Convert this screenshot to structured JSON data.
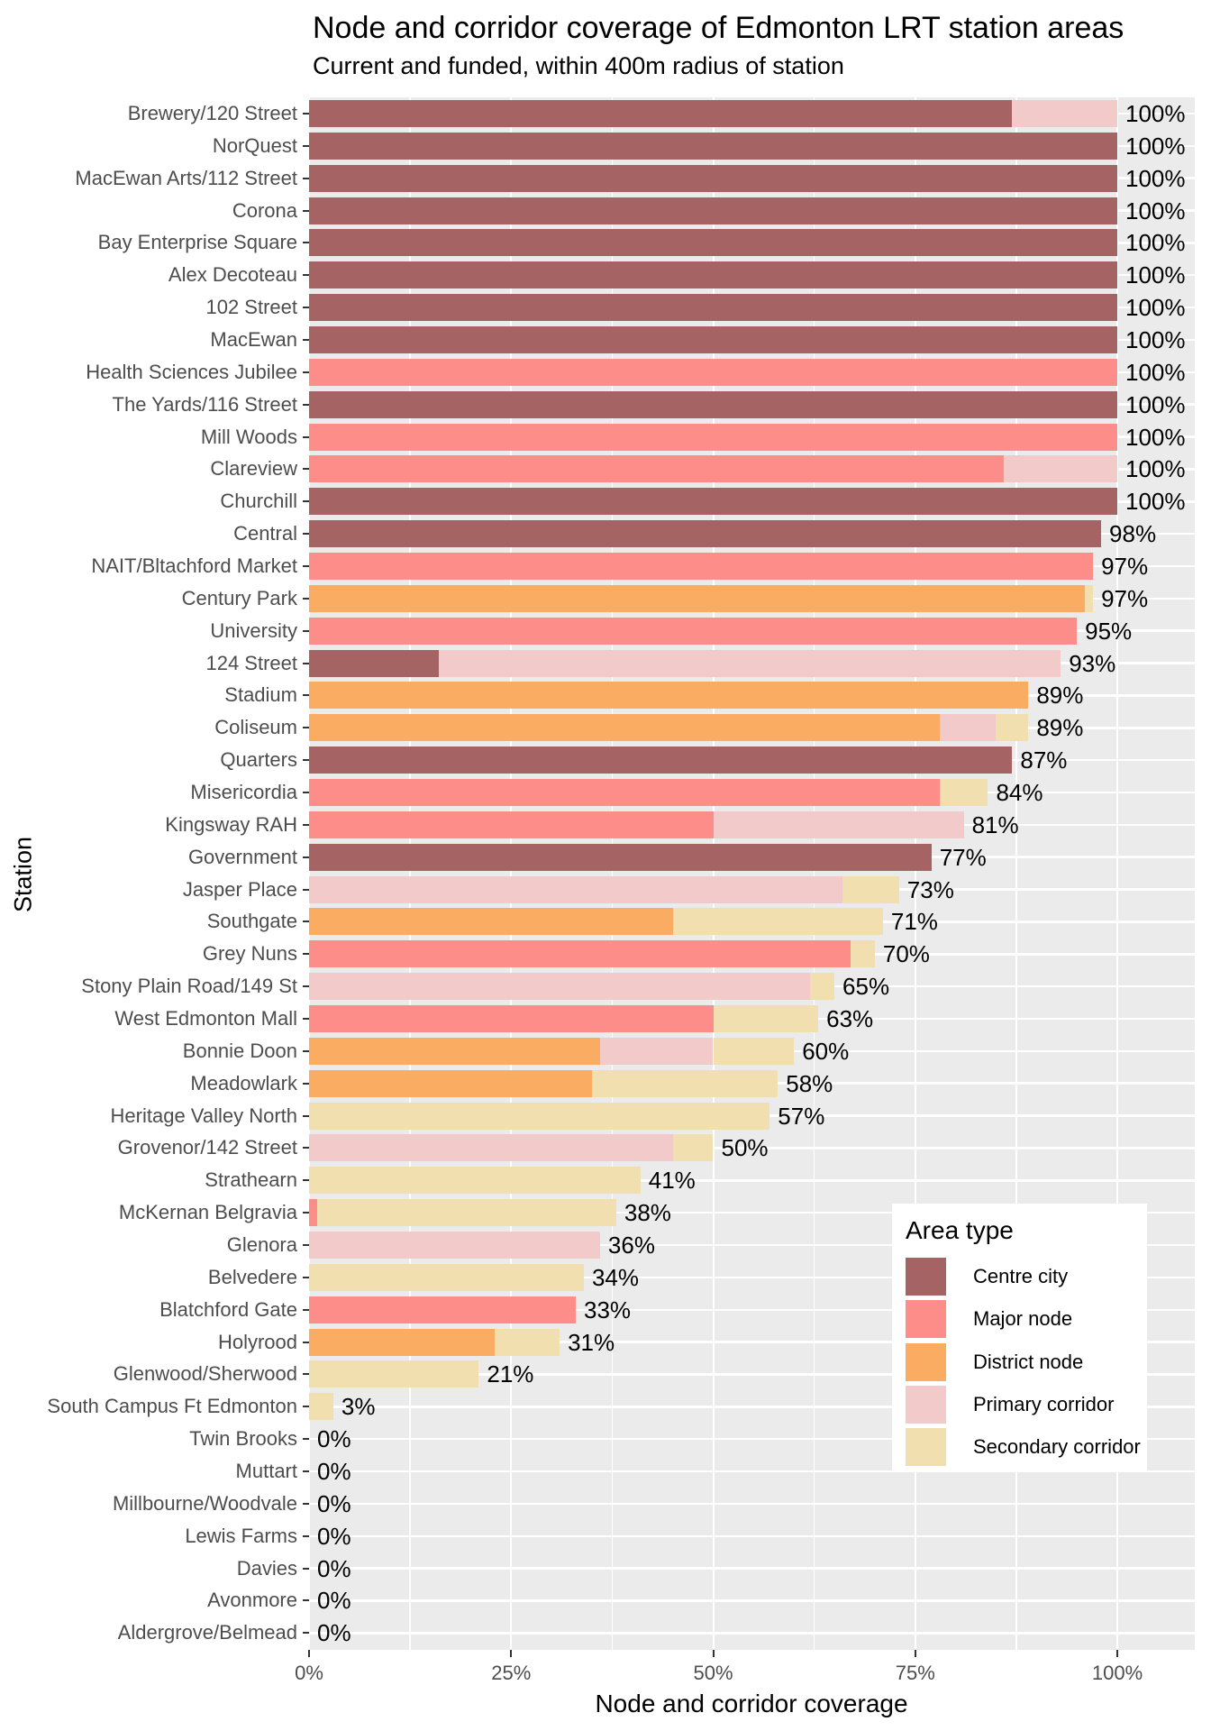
{
  "header": {
    "title": "Node and corridor coverage of Edmonton LRT station areas",
    "subtitle": "Current and funded, within 400m radius of station"
  },
  "axes": {
    "x_title": "Node and corridor coverage",
    "y_title": "Station",
    "x_ticks": [
      "0%",
      "25%",
      "50%",
      "75%",
      "100%"
    ]
  },
  "legend": {
    "title": "Area type",
    "entries": [
      {
        "label": "Centre city",
        "color": "#A66364"
      },
      {
        "label": "Major node",
        "color": "#FC8D88"
      },
      {
        "label": "District node",
        "color": "#FBAC63"
      },
      {
        "label": "Primary corridor",
        "color": "#F2CACA"
      },
      {
        "label": "Secondary corridor",
        "color": "#F1DFB0"
      }
    ]
  },
  "colors": {
    "panel_bg": "#EBEBEB",
    "grid": "#FFFFFF",
    "axis_text": "#4D4D4D",
    "tick": "#333333",
    "value_text": "#000000"
  },
  "chart_data": {
    "type": "bar",
    "orientation": "horizontal",
    "stacked": true,
    "xlabel": "Node and corridor coverage",
    "ylabel": "Station",
    "xlim": [
      0,
      100
    ],
    "x_major_ticks_pct": [
      0,
      25,
      50,
      75,
      100
    ],
    "x_minor_ticks_pct": [
      12.5,
      37.5,
      62.5,
      87.5
    ],
    "area_types": [
      "Centre city",
      "Major node",
      "District node",
      "Primary corridor",
      "Secondary corridor"
    ],
    "area_colors": {
      "Centre city": "#A66364",
      "Major node": "#FC8D88",
      "District node": "#FBAC63",
      "Primary corridor": "#F2CACA",
      "Secondary corridor": "#F1DFB0"
    },
    "stations": [
      {
        "name": "Brewery/120 Street",
        "label": "100%",
        "segments": [
          [
            "Centre city",
            87
          ],
          [
            "Primary corridor",
            13
          ]
        ]
      },
      {
        "name": "NorQuest",
        "label": "100%",
        "segments": [
          [
            "Centre city",
            100
          ]
        ]
      },
      {
        "name": "MacEwan Arts/112 Street",
        "label": "100%",
        "segments": [
          [
            "Centre city",
            100
          ]
        ]
      },
      {
        "name": "Corona",
        "label": "100%",
        "segments": [
          [
            "Centre city",
            100
          ]
        ]
      },
      {
        "name": "Bay Enterprise Square",
        "label": "100%",
        "segments": [
          [
            "Centre city",
            100
          ]
        ]
      },
      {
        "name": "Alex Decoteau",
        "label": "100%",
        "segments": [
          [
            "Centre city",
            100
          ]
        ]
      },
      {
        "name": "102 Street",
        "label": "100%",
        "segments": [
          [
            "Centre city",
            100
          ]
        ]
      },
      {
        "name": "MacEwan",
        "label": "100%",
        "segments": [
          [
            "Centre city",
            100
          ]
        ]
      },
      {
        "name": "Health Sciences Jubilee",
        "label": "100%",
        "segments": [
          [
            "Major node",
            100
          ]
        ]
      },
      {
        "name": "The Yards/116 Street",
        "label": "100%",
        "segments": [
          [
            "Centre city",
            100
          ]
        ]
      },
      {
        "name": "Mill Woods",
        "label": "100%",
        "segments": [
          [
            "Major node",
            100
          ]
        ]
      },
      {
        "name": "Clareview",
        "label": "100%",
        "segments": [
          [
            "Major node",
            86
          ],
          [
            "Primary corridor",
            14
          ]
        ]
      },
      {
        "name": "Churchill",
        "label": "100%",
        "segments": [
          [
            "Centre city",
            100
          ]
        ]
      },
      {
        "name": "Central",
        "label": "98%",
        "segments": [
          [
            "Centre city",
            98
          ]
        ]
      },
      {
        "name": "NAIT/Bltachford Market",
        "label": "97%",
        "segments": [
          [
            "Major node",
            97
          ]
        ]
      },
      {
        "name": "Century Park",
        "label": "97%",
        "segments": [
          [
            "District node",
            96
          ],
          [
            "Secondary corridor",
            1
          ]
        ]
      },
      {
        "name": "University",
        "label": "95%",
        "segments": [
          [
            "Major node",
            95
          ]
        ]
      },
      {
        "name": "124 Street",
        "label": "93%",
        "segments": [
          [
            "Centre city",
            16
          ],
          [
            "Primary corridor",
            77
          ]
        ]
      },
      {
        "name": "Stadium",
        "label": "89%",
        "segments": [
          [
            "District node",
            89
          ]
        ]
      },
      {
        "name": "Coliseum",
        "label": "89%",
        "segments": [
          [
            "District node",
            78
          ],
          [
            "Primary corridor",
            7
          ],
          [
            "Secondary corridor",
            4
          ]
        ]
      },
      {
        "name": "Quarters",
        "label": "87%",
        "segments": [
          [
            "Centre city",
            87
          ]
        ]
      },
      {
        "name": "Misericordia",
        "label": "84%",
        "segments": [
          [
            "Major node",
            78
          ],
          [
            "Secondary corridor",
            6
          ]
        ]
      },
      {
        "name": "Kingsway RAH",
        "label": "81%",
        "segments": [
          [
            "Major node",
            50
          ],
          [
            "Primary corridor",
            31
          ]
        ]
      },
      {
        "name": "Government",
        "label": "77%",
        "segments": [
          [
            "Centre city",
            77
          ]
        ]
      },
      {
        "name": "Jasper Place",
        "label": "73%",
        "segments": [
          [
            "Primary corridor",
            66
          ],
          [
            "Secondary corridor",
            7
          ]
        ]
      },
      {
        "name": "Southgate",
        "label": "71%",
        "segments": [
          [
            "District node",
            45
          ],
          [
            "Secondary corridor",
            26
          ]
        ]
      },
      {
        "name": "Grey Nuns",
        "label": "70%",
        "segments": [
          [
            "Major node",
            67
          ],
          [
            "Secondary corridor",
            3
          ]
        ]
      },
      {
        "name": "Stony Plain Road/149 St",
        "label": "65%",
        "segments": [
          [
            "Primary corridor",
            62
          ],
          [
            "Secondary corridor",
            3
          ]
        ]
      },
      {
        "name": "West Edmonton Mall",
        "label": "63%",
        "segments": [
          [
            "Major node",
            50
          ],
          [
            "Secondary corridor",
            13
          ]
        ]
      },
      {
        "name": "Bonnie Doon",
        "label": "60%",
        "segments": [
          [
            "District node",
            36
          ],
          [
            "Primary corridor",
            14
          ],
          [
            "Secondary corridor",
            10
          ]
        ]
      },
      {
        "name": "Meadowlark",
        "label": "58%",
        "segments": [
          [
            "District node",
            35
          ],
          [
            "Secondary corridor",
            23
          ]
        ]
      },
      {
        "name": "Heritage Valley North",
        "label": "57%",
        "segments": [
          [
            "Secondary corridor",
            57
          ]
        ]
      },
      {
        "name": "Grovenor/142 Street",
        "label": "50%",
        "segments": [
          [
            "Primary corridor",
            45
          ],
          [
            "Secondary corridor",
            5
          ]
        ]
      },
      {
        "name": "Strathearn",
        "label": "41%",
        "segments": [
          [
            "Secondary corridor",
            41
          ]
        ]
      },
      {
        "name": "McKernan Belgravia",
        "label": "38%",
        "segments": [
          [
            "Major node",
            1
          ],
          [
            "Secondary corridor",
            37
          ]
        ]
      },
      {
        "name": "Glenora",
        "label": "36%",
        "segments": [
          [
            "Primary corridor",
            36
          ]
        ]
      },
      {
        "name": "Belvedere",
        "label": "34%",
        "segments": [
          [
            "Secondary corridor",
            34
          ]
        ]
      },
      {
        "name": "Blatchford Gate",
        "label": "33%",
        "segments": [
          [
            "Major node",
            33
          ]
        ]
      },
      {
        "name": "Holyrood",
        "label": "31%",
        "segments": [
          [
            "District node",
            23
          ],
          [
            "Secondary corridor",
            8
          ]
        ]
      },
      {
        "name": "Glenwood/Sherwood",
        "label": "21%",
        "segments": [
          [
            "Secondary corridor",
            21
          ]
        ]
      },
      {
        "name": "South Campus Ft Edmonton",
        "label": "3%",
        "segments": [
          [
            "Secondary corridor",
            3
          ]
        ]
      },
      {
        "name": "Twin Brooks",
        "label": "0%",
        "segments": []
      },
      {
        "name": "Muttart",
        "label": "0%",
        "segments": []
      },
      {
        "name": "Millbourne/Woodvale",
        "label": "0%",
        "segments": []
      },
      {
        "name": "Lewis Farms",
        "label": "0%",
        "segments": []
      },
      {
        "name": "Davies",
        "label": "0%",
        "segments": []
      },
      {
        "name": "Avonmore",
        "label": "0%",
        "segments": []
      },
      {
        "name": "Aldergrove/Belmead",
        "label": "0%",
        "segments": []
      }
    ]
  }
}
